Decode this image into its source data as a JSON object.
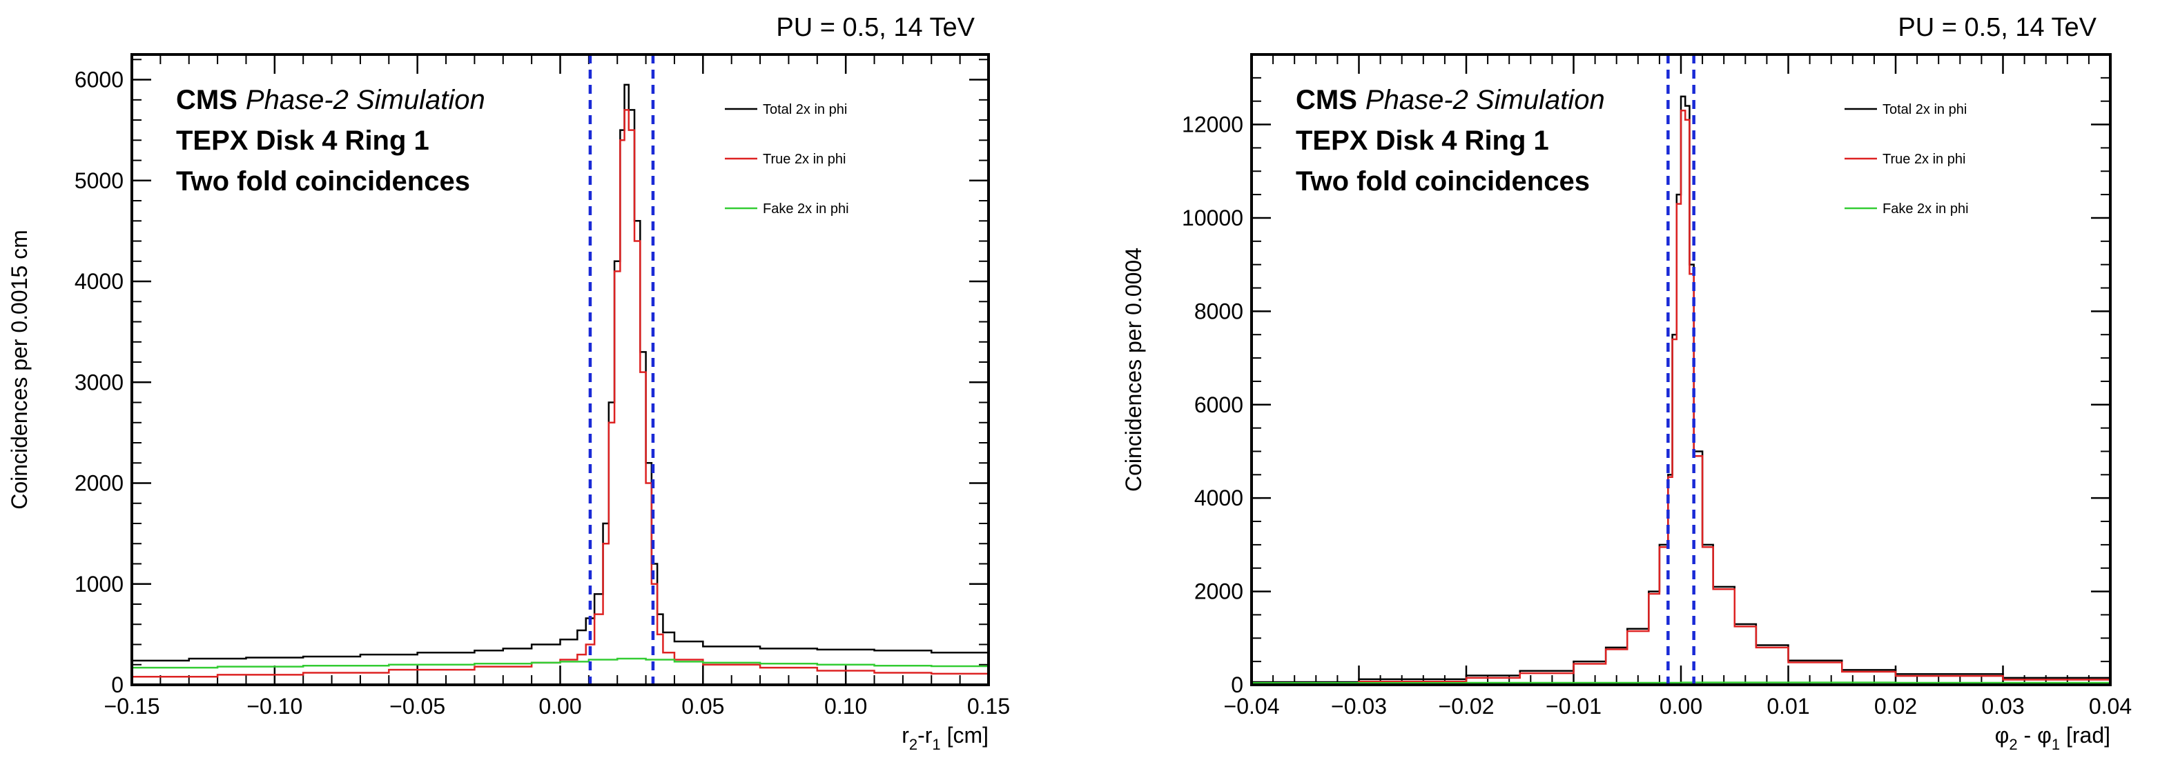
{
  "chart_data": [
    {
      "type": "line",
      "title": "PU = 0.5, 14 TeV",
      "annotations": [
        "CMS",
        "Phase-2 Simulation",
        "TEPX Disk 4 Ring 1",
        "Two fold coincidences"
      ],
      "xlabel": "r2-r1 [cm]",
      "xlabel_main": "r",
      "xlabel_sub1": "2",
      "xlabel_mid": "-r",
      "xlabel_sub2": "1",
      "xlabel_unit": " [cm]",
      "ylabel": "Coincidences per 0.0015 cm",
      "xlim": [
        -0.15,
        0.15
      ],
      "ylim": [
        0,
        6250
      ],
      "x_ticks": [
        -0.15,
        -0.1,
        -0.05,
        0.0,
        0.05,
        0.1,
        0.15
      ],
      "x_tick_labels": [
        "−0.15",
        "−0.10",
        "−0.05",
        "0.00",
        "0.05",
        "0.10",
        "0.15"
      ],
      "y_ticks": [
        0,
        1000,
        2000,
        3000,
        4000,
        5000,
        6000
      ],
      "y_tick_labels": [
        "0",
        "1000",
        "2000",
        "3000",
        "4000",
        "5000",
        "6000"
      ],
      "x_minor_step": 0.01,
      "y_minor_step": 200,
      "cut_lines": [
        0.0105,
        0.0325
      ],
      "legend_position": "top-right",
      "grid": false,
      "series": [
        {
          "name": "Total 2x in phi",
          "color": "#000000",
          "points": [
            [
              -0.15,
              240
            ],
            [
              -0.13,
              260
            ],
            [
              -0.11,
              270
            ],
            [
              -0.09,
              280
            ],
            [
              -0.07,
              300
            ],
            [
              -0.05,
              320
            ],
            [
              -0.03,
              340
            ],
            [
              -0.02,
              360
            ],
            [
              -0.01,
              400
            ],
            [
              0.0,
              450
            ],
            [
              0.006,
              540
            ],
            [
              0.009,
              660
            ],
            [
              0.012,
              900
            ],
            [
              0.015,
              1600
            ],
            [
              0.017,
              2800
            ],
            [
              0.019,
              4200
            ],
            [
              0.021,
              5500
            ],
            [
              0.0225,
              5950
            ],
            [
              0.024,
              5700
            ],
            [
              0.026,
              4600
            ],
            [
              0.028,
              3300
            ],
            [
              0.03,
              2200
            ],
            [
              0.032,
              1200
            ],
            [
              0.034,
              700
            ],
            [
              0.036,
              520
            ],
            [
              0.04,
              430
            ],
            [
              0.05,
              380
            ],
            [
              0.07,
              360
            ],
            [
              0.09,
              350
            ],
            [
              0.11,
              340
            ],
            [
              0.13,
              320
            ],
            [
              0.15,
              300
            ]
          ]
        },
        {
          "name": "True 2x in phi",
          "color": "#dd2222",
          "points": [
            [
              -0.15,
              80
            ],
            [
              -0.12,
              100
            ],
            [
              -0.09,
              120
            ],
            [
              -0.06,
              150
            ],
            [
              -0.03,
              180
            ],
            [
              -0.01,
              220
            ],
            [
              0.0,
              250
            ],
            [
              0.006,
              300
            ],
            [
              0.009,
              400
            ],
            [
              0.012,
              700
            ],
            [
              0.015,
              1400
            ],
            [
              0.017,
              2600
            ],
            [
              0.019,
              4100
            ],
            [
              0.021,
              5400
            ],
            [
              0.0225,
              5700
            ],
            [
              0.024,
              5500
            ],
            [
              0.026,
              4400
            ],
            [
              0.028,
              3100
            ],
            [
              0.03,
              2000
            ],
            [
              0.032,
              1000
            ],
            [
              0.034,
              500
            ],
            [
              0.036,
              320
            ],
            [
              0.04,
              250
            ],
            [
              0.05,
              200
            ],
            [
              0.07,
              170
            ],
            [
              0.09,
              140
            ],
            [
              0.11,
              120
            ],
            [
              0.13,
              110
            ],
            [
              0.15,
              100
            ]
          ]
        },
        {
          "name": "Fake 2x in phi",
          "color": "#33cc33",
          "points": [
            [
              -0.15,
              170
            ],
            [
              -0.12,
              180
            ],
            [
              -0.09,
              190
            ],
            [
              -0.06,
              200
            ],
            [
              -0.03,
              210
            ],
            [
              -0.01,
              220
            ],
            [
              0.0,
              230
            ],
            [
              0.01,
              250
            ],
            [
              0.02,
              260
            ],
            [
              0.03,
              250
            ],
            [
              0.04,
              230
            ],
            [
              0.05,
              220
            ],
            [
              0.07,
              210
            ],
            [
              0.09,
              200
            ],
            [
              0.11,
              190
            ],
            [
              0.13,
              185
            ],
            [
              0.15,
              180
            ]
          ]
        }
      ]
    },
    {
      "type": "line",
      "title": "PU = 0.5, 14 TeV",
      "annotations": [
        "CMS",
        "Phase-2 Simulation",
        "TEPX Disk 4 Ring 1",
        "Two fold coincidences"
      ],
      "xlabel": "φ2 - φ1 [rad]",
      "xlabel_main": "φ",
      "xlabel_sub1": "2",
      "xlabel_mid": " - φ",
      "xlabel_sub2": "1",
      "xlabel_unit": " [rad]",
      "ylabel": "Coincidences per 0.0004",
      "xlim": [
        -0.04,
        0.04
      ],
      "ylim": [
        0,
        13500
      ],
      "x_ticks": [
        -0.04,
        -0.03,
        -0.02,
        -0.01,
        0.0,
        0.01,
        0.02,
        0.03,
        0.04
      ],
      "x_tick_labels": [
        "−0.04",
        "−0.03",
        "−0.02",
        "−0.01",
        "0.00",
        "0.01",
        "0.02",
        "0.03",
        "0.04"
      ],
      "y_ticks": [
        0,
        2000,
        4000,
        6000,
        8000,
        10000,
        12000
      ],
      "y_tick_labels": [
        "0",
        "2000",
        "4000",
        "6000",
        "8000",
        "10000",
        "12000"
      ],
      "x_minor_step": 0.002,
      "y_minor_step": 500,
      "cut_lines": [
        -0.0012,
        0.0012
      ],
      "legend_position": "top-right",
      "grid": false,
      "series": [
        {
          "name": "Total 2x in phi",
          "color": "#000000",
          "points": [
            [
              -0.04,
              60
            ],
            [
              -0.03,
              120
            ],
            [
              -0.02,
              200
            ],
            [
              -0.015,
              300
            ],
            [
              -0.01,
              500
            ],
            [
              -0.007,
              800
            ],
            [
              -0.005,
              1200
            ],
            [
              -0.003,
              2000
            ],
            [
              -0.002,
              3000
            ],
            [
              -0.0012,
              4500
            ],
            [
              -0.0008,
              7500
            ],
            [
              -0.0004,
              10500
            ],
            [
              0.0,
              12600
            ],
            [
              0.0004,
              12400
            ],
            [
              0.0008,
              9000
            ],
            [
              0.0012,
              5000
            ],
            [
              0.002,
              3000
            ],
            [
              0.003,
              2100
            ],
            [
              0.005,
              1300
            ],
            [
              0.007,
              850
            ],
            [
              0.01,
              520
            ],
            [
              0.015,
              320
            ],
            [
              0.02,
              230
            ],
            [
              0.03,
              150
            ],
            [
              0.04,
              100
            ]
          ]
        },
        {
          "name": "True 2x in phi",
          "color": "#dd2222",
          "points": [
            [
              -0.04,
              20
            ],
            [
              -0.03,
              70
            ],
            [
              -0.02,
              150
            ],
            [
              -0.015,
              250
            ],
            [
              -0.01,
              450
            ],
            [
              -0.007,
              760
            ],
            [
              -0.005,
              1150
            ],
            [
              -0.003,
              1950
            ],
            [
              -0.002,
              2950
            ],
            [
              -0.0012,
              4450
            ],
            [
              -0.0008,
              7400
            ],
            [
              -0.0004,
              10300
            ],
            [
              0.0,
              12300
            ],
            [
              0.0004,
              12100
            ],
            [
              0.0008,
              8800
            ],
            [
              0.0012,
              4900
            ],
            [
              0.002,
              2950
            ],
            [
              0.003,
              2050
            ],
            [
              0.005,
              1250
            ],
            [
              0.007,
              800
            ],
            [
              0.01,
              480
            ],
            [
              0.015,
              280
            ],
            [
              0.02,
              190
            ],
            [
              0.03,
              110
            ],
            [
              0.04,
              70
            ]
          ]
        },
        {
          "name": "Fake 2x in phi",
          "color": "#33cc33",
          "points": [
            [
              -0.04,
              40
            ],
            [
              -0.02,
              45
            ],
            [
              0.0,
              50
            ],
            [
              0.02,
              45
            ],
            [
              0.04,
              40
            ]
          ]
        }
      ]
    }
  ]
}
